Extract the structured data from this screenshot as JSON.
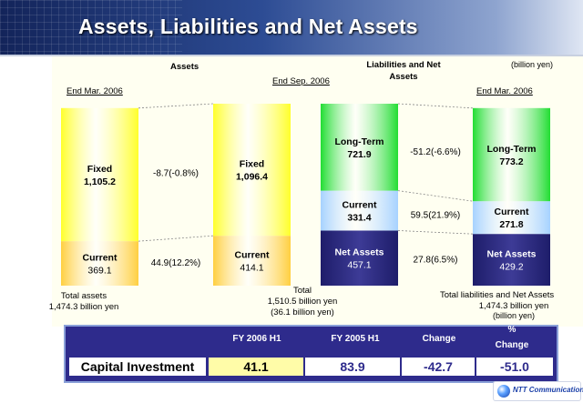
{
  "header": {
    "title": "Assets, Liabilities and Net Assets"
  },
  "unit_note": "(billion yen)",
  "headings": {
    "assets": "Assets",
    "liabilities_line1": "Liabilities and Net",
    "liabilities_line2": "Assets"
  },
  "date_labels": {
    "assets_end_mar": "End Mar. 2006",
    "end_sep": "End Sep. 2006",
    "liab_end_mar": "End Mar. 2006"
  },
  "totals": {
    "assets_line1": "Total assets",
    "assets_line2": "1,474.3 billion yen",
    "center_line1": "Total",
    "center_line2": "1,510.5 billion yen",
    "center_line3": "(36.1 billion yen)",
    "liab_line1": "Total liabilities and Net Assets",
    "liab_line2": "1,474.3 billion yen",
    "liab_line3": "(billion yen)"
  },
  "chart_data": [
    {
      "type": "bar",
      "stacked": true,
      "group": "Assets",
      "categories": [
        "End Mar. 2006",
        "End Sep. 2006"
      ],
      "series": [
        {
          "name": "Current",
          "values": [
            369.1,
            414.1
          ],
          "labels": [
            "369.1",
            "414.1"
          ],
          "color": "#ffcf40"
        },
        {
          "name": "Fixed",
          "values": [
            1105.2,
            1096.4
          ],
          "labels": [
            "1,105.2",
            "1,096.4"
          ],
          "color": "#ffff2a"
        }
      ],
      "changes": {
        "Fixed": "-8.7(-0.8%)",
        "Current": "44.9(12.2%)"
      }
    },
    {
      "type": "bar",
      "stacked": true,
      "group": "Liabilities and Net Assets",
      "categories": [
        "End Sep. 2006",
        "End Mar. 2006"
      ],
      "series": [
        {
          "name": "Net Assets",
          "values": [
            457.1,
            429.2
          ],
          "labels": [
            "457.1",
            "429.2"
          ],
          "color": "#3d3b96"
        },
        {
          "name": "Current",
          "values": [
            331.4,
            271.8
          ],
          "labels": [
            "331.4",
            "271.8"
          ],
          "color": "#a6d2ff"
        },
        {
          "name": "Long-Term",
          "values": [
            721.9,
            773.2
          ],
          "labels": [
            "721.9",
            "773.2"
          ],
          "color": "#22dd33"
        }
      ],
      "changes": {
        "Long-Term": "-51.2(-6.6%)",
        "Current": "59.5(21.9%)",
        "Net Assets": "27.8(6.5%)"
      }
    }
  ],
  "table": {
    "headers": [
      "FY 2006 H1",
      "FY 2005 H1",
      "Change",
      "%",
      "Change"
    ],
    "row_label": "Capital Investment",
    "values": [
      "41.1",
      "83.9",
      "-42.7",
      "-51.0"
    ]
  },
  "logo": {
    "text": "NTT Communications"
  }
}
